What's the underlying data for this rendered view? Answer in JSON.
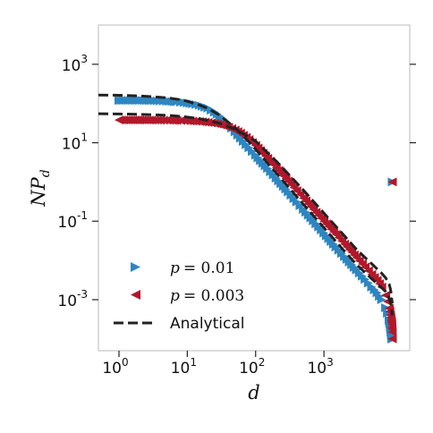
{
  "chart_data": {
    "type": "scatter",
    "title": "",
    "xlabel": "d",
    "ylabel_main": "NP",
    "ylabel_sub": "d",
    "xscale": "log",
    "yscale": "log",
    "xlim": [
      0.5,
      18000
    ],
    "ylim": [
      5e-05,
      10000
    ],
    "grid": false,
    "legend_placement": "lower-left",
    "x_ticks": [
      {
        "value": 1,
        "base": "10",
        "exp": "0"
      },
      {
        "value": 10,
        "base": "10",
        "exp": "1"
      },
      {
        "value": 100,
        "base": "10",
        "exp": "2"
      },
      {
        "value": 1000,
        "base": "10",
        "exp": "3"
      }
    ],
    "y_ticks": [
      {
        "value": 0.001,
        "base": "10",
        "exp": "-3"
      },
      {
        "value": 0.1,
        "base": "10",
        "exp": "-1"
      },
      {
        "value": 10,
        "base": "10",
        "exp": "1"
      },
      {
        "value": 1000,
        "base": "10",
        "exp": "3"
      }
    ],
    "series": [
      {
        "name": "p = 0.01",
        "label_var": "p",
        "label_val": "= 0.01",
        "marker": "triangle-right",
        "color": "#2e86c1",
        "x": [
          1,
          2,
          3,
          4,
          5,
          6,
          7,
          8,
          9,
          10,
          12,
          15,
          20,
          25,
          30,
          40,
          50,
          60,
          80,
          100,
          150,
          200,
          300,
          400,
          500,
          700,
          1000,
          1500,
          2000,
          3000,
          4000,
          5000,
          6000,
          7000,
          8000,
          8500,
          9000,
          9200,
          9400,
          9500,
          9600,
          9700,
          9800,
          9850,
          9900,
          9950,
          10000,
          10000
        ],
        "y": [
          120,
          120,
          118,
          116,
          114,
          112,
          110,
          108,
          106,
          103,
          98,
          90,
          76,
          60,
          47,
          29,
          19,
          13,
          7.4,
          4.8,
          2.2,
          1.25,
          0.56,
          0.31,
          0.2,
          0.102,
          0.05,
          0.022,
          0.0125,
          0.0057,
          0.0033,
          0.0021,
          0.0015,
          0.001,
          0.00062,
          0.00045,
          0.0003,
          0.00025,
          0.0002,
          0.00017,
          0.00015,
          0.00013,
          0.00012,
          0.00011,
          0.0001,
          0.0001,
          0.0001,
          1
        ]
      },
      {
        "name": "p = 0.003",
        "label_var": "p",
        "label_val": "= 0.003",
        "marker": "triangle-left",
        "color": "#b2182b",
        "x": [
          1,
          2,
          3,
          4,
          5,
          6,
          7,
          8,
          9,
          10,
          12,
          15,
          20,
          25,
          30,
          40,
          50,
          60,
          80,
          100,
          150,
          200,
          300,
          400,
          500,
          700,
          1000,
          1500,
          2000,
          3000,
          4000,
          5000,
          6000,
          7000,
          8000,
          8500,
          9000,
          9200,
          9400,
          9500,
          9600,
          9700,
          9800,
          9850,
          9900,
          9950,
          10000,
          10000
        ],
        "y": [
          38,
          38,
          37.8,
          37.6,
          37.4,
          37.2,
          37,
          36.8,
          36.5,
          36.2,
          35.6,
          34.6,
          33,
          31,
          29,
          25,
          21,
          17.5,
          12,
          8.5,
          4,
          2.3,
          1.05,
          0.6,
          0.39,
          0.2,
          0.1,
          0.046,
          0.026,
          0.0118,
          0.0068,
          0.0044,
          0.0031,
          0.0021,
          0.0013,
          0.0009,
          0.0006,
          0.0005,
          0.0004,
          0.00035,
          0.0003,
          0.00027,
          0.00024,
          0.0002,
          0.00018,
          0.00015,
          0.0001,
          1
        ]
      },
      {
        "name": "Analytical",
        "label_plain": "Analytical",
        "marker": "dashed-line",
        "color": "#222222",
        "curves": [
          {
            "x": [
              0.5,
              1,
              2,
              3,
              5,
              8,
              10,
              15,
              20,
              30,
              50,
              80,
              100,
              200,
              300,
              500,
              1000,
              2000,
              3000,
              5000,
              7000,
              8000,
              9000,
              9500,
              10000
            ],
            "y": [
              165,
              162,
              156,
              150,
              140,
              125,
              114,
              92,
              75,
              50,
              24,
              10.5,
              6.8,
              1.7,
              0.75,
              0.27,
              0.068,
              0.017,
              0.0078,
              0.0034,
              0.002,
              0.0016,
              0.0011,
              0.0008,
              0.0004
            ]
          },
          {
            "x": [
              0.5,
              1,
              2,
              3,
              5,
              8,
              10,
              15,
              20,
              30,
              50,
              80,
              100,
              200,
              300,
              500,
              1000,
              2000,
              3000,
              5000,
              7000,
              8000,
              9000,
              9500,
              10000
            ],
            "y": [
              55,
              54,
              53,
              52,
              50,
              47,
              45,
              41,
              37,
              31,
              22,
              14,
              11,
              3.4,
              1.6,
              0.62,
              0.16,
              0.042,
              0.019,
              0.0082,
              0.0047,
              0.0036,
              0.0025,
              0.0017,
              0.0008
            ]
          }
        ]
      }
    ]
  }
}
